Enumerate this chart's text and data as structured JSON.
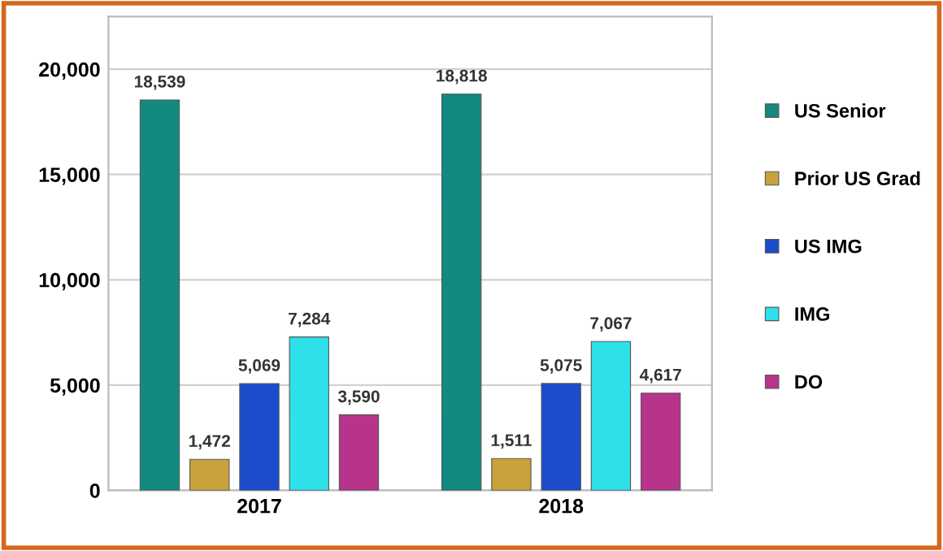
{
  "chart_data": {
    "type": "bar",
    "categories": [
      "2017",
      "2018"
    ],
    "series": [
      {
        "name": "US Senior",
        "color": "#128a80",
        "values": [
          18539,
          18818
        ],
        "value_labels": [
          "18,539",
          "18,818"
        ]
      },
      {
        "name": "Prior US Grad",
        "color": "#c9a23c",
        "values": [
          1472,
          1511
        ],
        "value_labels": [
          "1,472",
          "1,511"
        ]
      },
      {
        "name": "US IMG",
        "color": "#1a4ccc",
        "values": [
          5069,
          5075
        ],
        "value_labels": [
          "5,069",
          "5,075"
        ]
      },
      {
        "name": "IMG",
        "color": "#2ee0ea",
        "values": [
          7284,
          7067
        ],
        "value_labels": [
          "7,284",
          "7,067"
        ]
      },
      {
        "name": "DO",
        "color": "#b8338a",
        "values": [
          3590,
          4617
        ],
        "value_labels": [
          "3,590",
          "4,617"
        ]
      }
    ],
    "ylim": [
      0,
      22500
    ],
    "yticks": [
      {
        "value": 0,
        "label": "0"
      },
      {
        "value": 5000,
        "label": "5,000"
      },
      {
        "value": 10000,
        "label": "10,000"
      },
      {
        "value": 15000,
        "label": "15,000"
      },
      {
        "value": 20000,
        "label": "20,000"
      }
    ],
    "grid": "y",
    "legend": "right"
  }
}
